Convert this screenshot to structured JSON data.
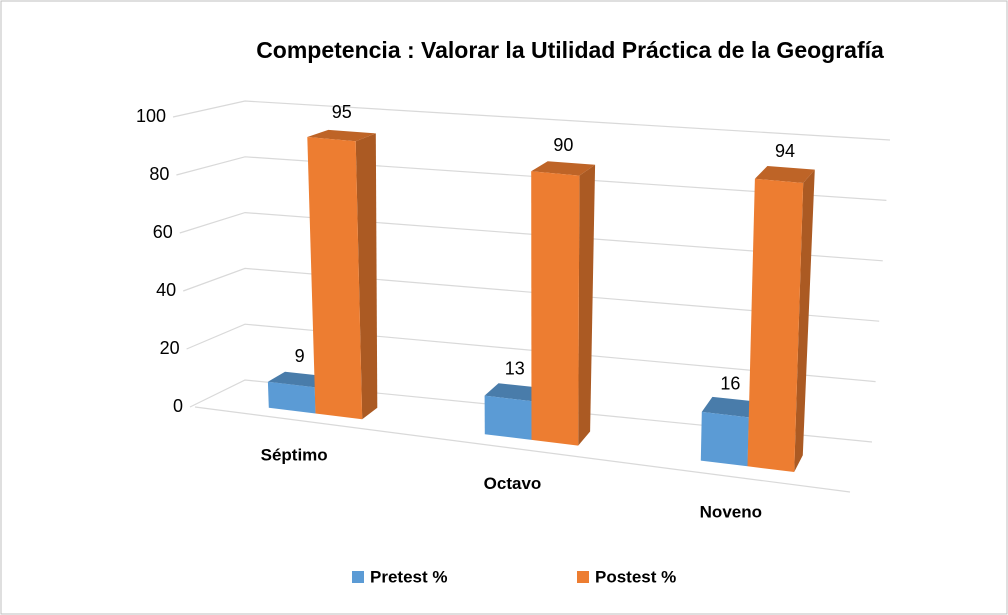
{
  "chart_data": {
    "type": "bar3d",
    "title": "Competencia : Valorar la Utilidad Práctica de la Geografía",
    "categories": [
      "Séptimo",
      "Octavo",
      "Noveno"
    ],
    "series": [
      {
        "name": "Pretest %",
        "color": "#5b9bd5",
        "values": [
          9,
          13,
          16
        ]
      },
      {
        "name": "Postest %",
        "color": "#ed7d31",
        "values": [
          95,
          90,
          94
        ]
      }
    ],
    "ylim": [
      0,
      100
    ],
    "yticks": [
      0,
      20,
      40,
      60,
      80,
      100
    ],
    "grid": true,
    "legend": "bottom"
  }
}
